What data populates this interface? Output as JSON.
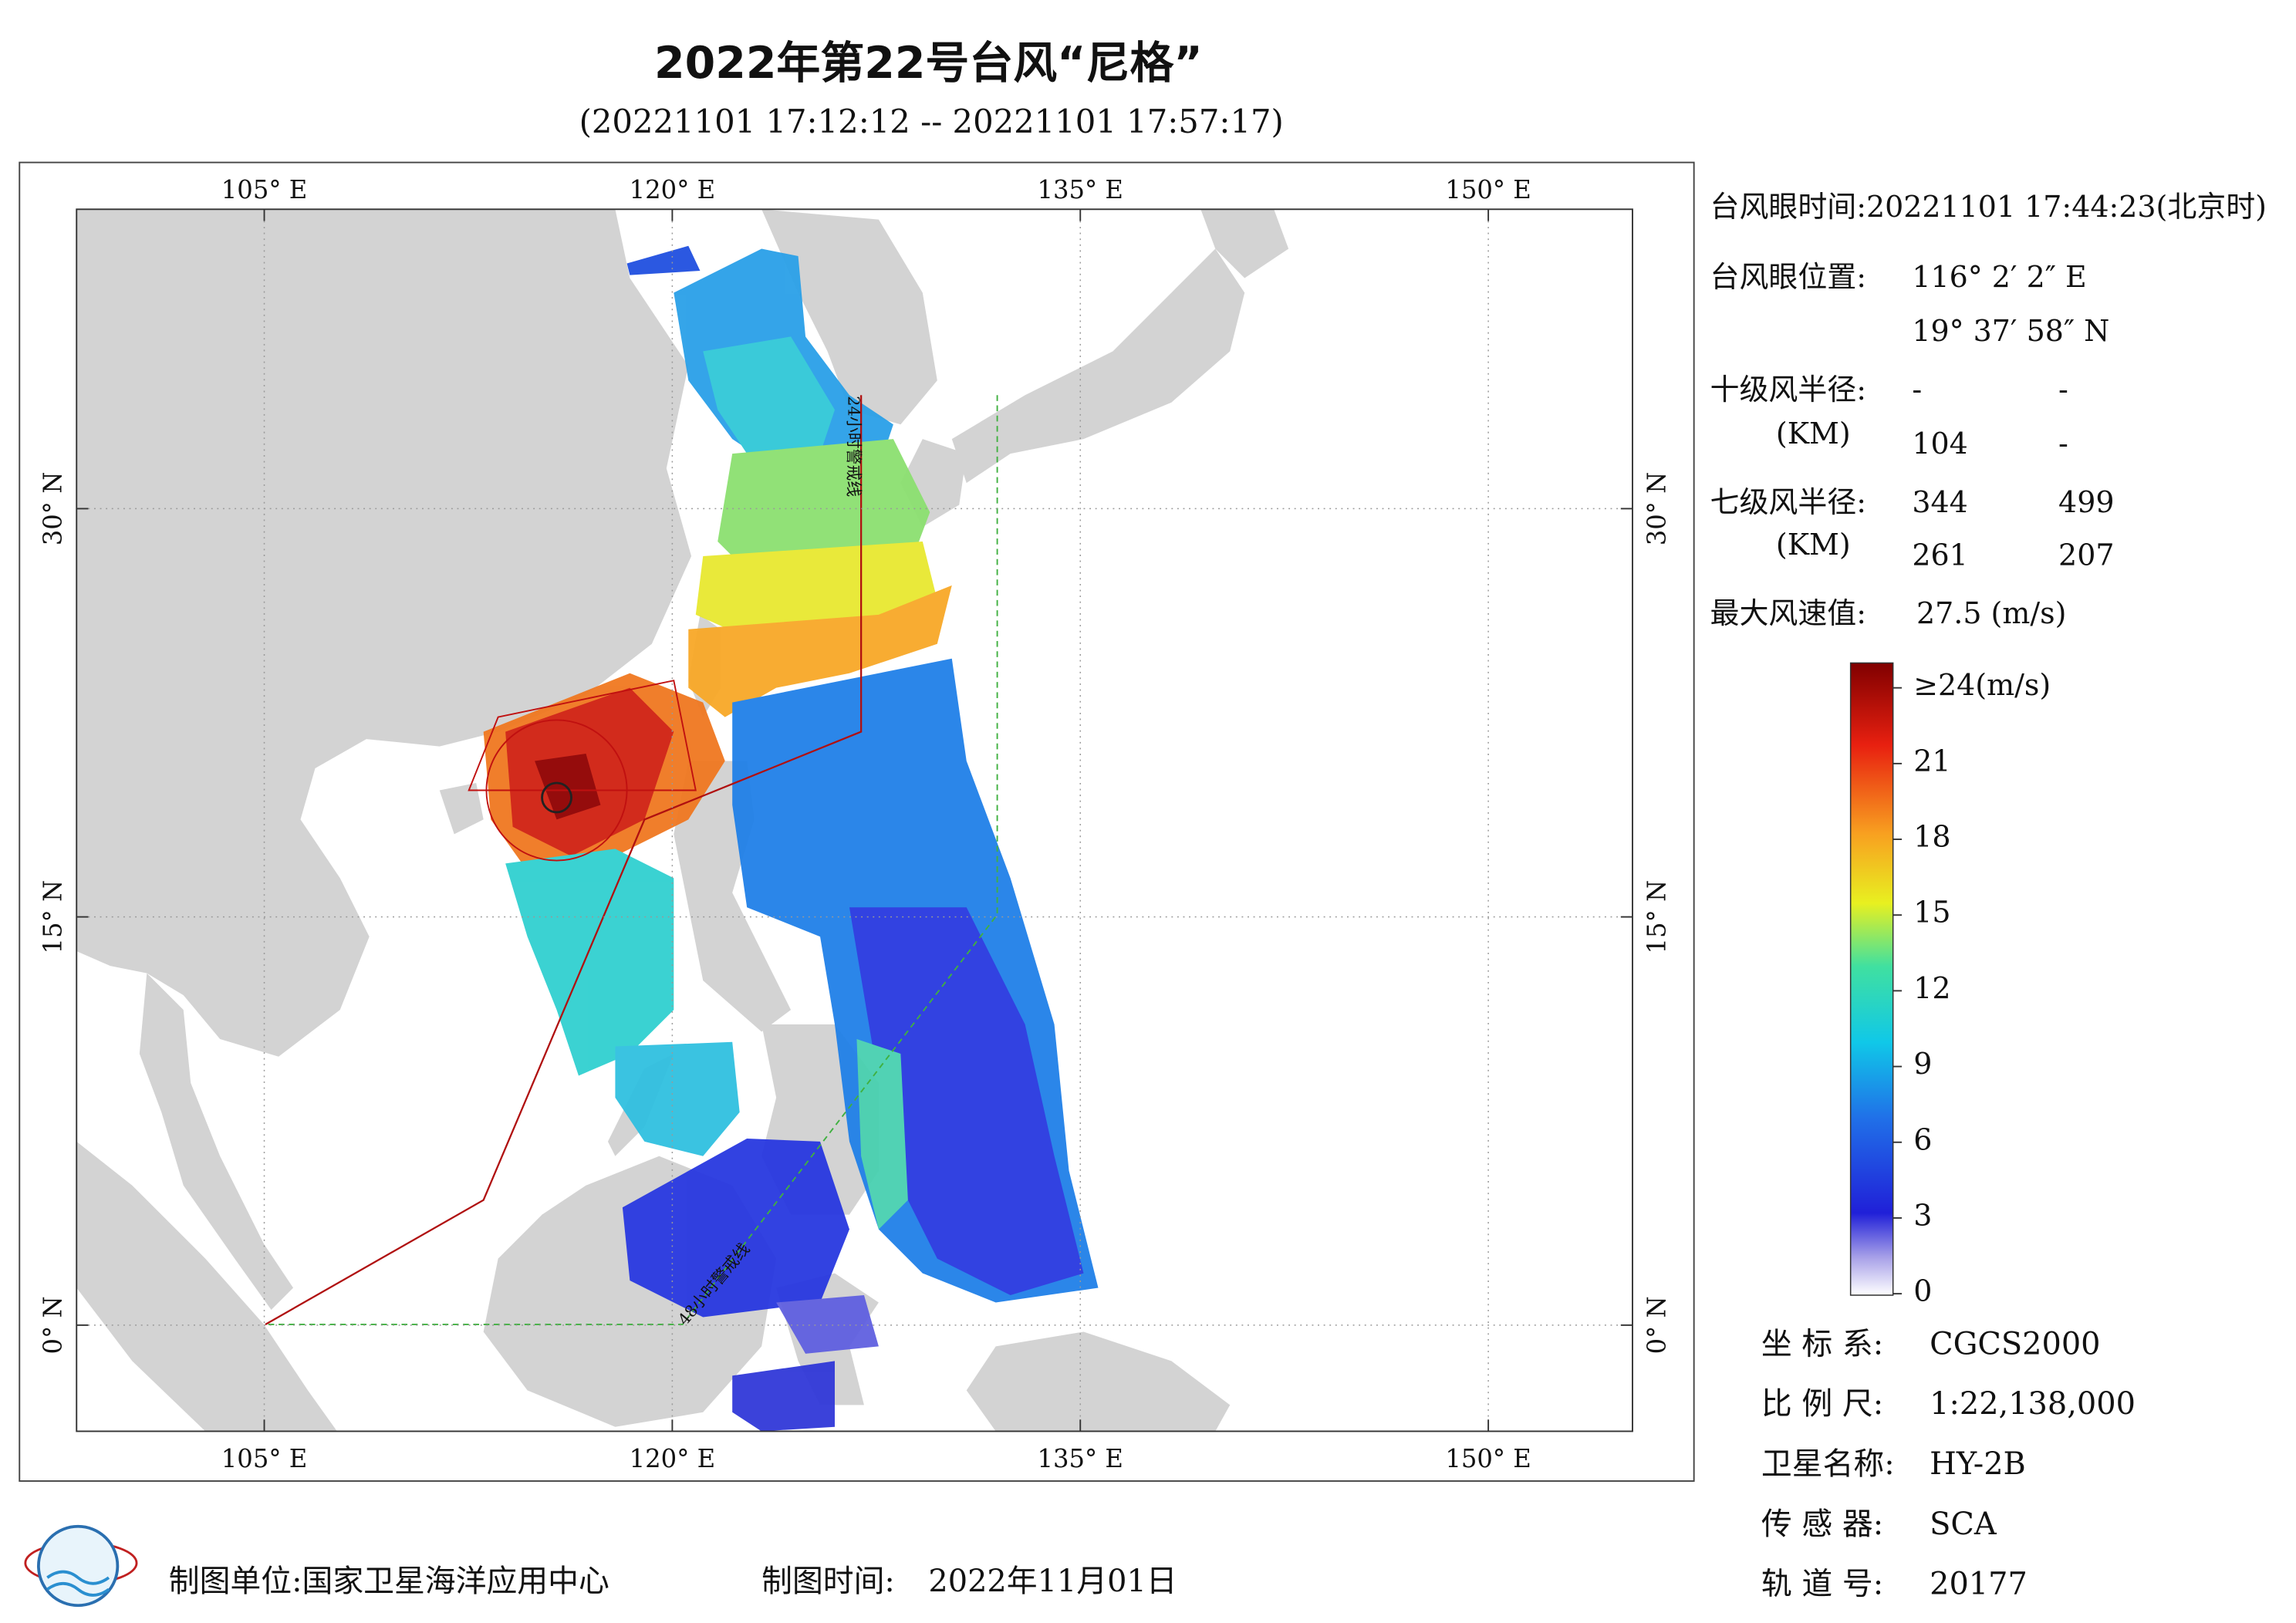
{
  "header": {
    "title": "2022年第22号台风“尼格”",
    "subtitle": "(20221101 17:12:12 -- 20221101 17:57:17)"
  },
  "map": {
    "lon_range": [
      98.1,
      155.3
    ],
    "lat_range": [
      -3.9,
      41.0
    ],
    "lon_ticks": [
      {
        "value": 105,
        "label": "105° E"
      },
      {
        "value": 120,
        "label": "120° E"
      },
      {
        "value": 135,
        "label": "135° E"
      },
      {
        "value": 150,
        "label": "150° E"
      }
    ],
    "lat_ticks": [
      {
        "value": 0,
        "label": "0° N"
      },
      {
        "value": 15,
        "label": "15° N"
      },
      {
        "value": 30,
        "label": "30° N"
      }
    ],
    "line_24h": "24小时警戒线",
    "line_48h": "48小时警戒线"
  },
  "info": {
    "eye_time": "台风眼时间:20221101 17:44:23(北京时)",
    "eye_pos_label": "台风眼位置:",
    "eye_lon": "116° 2′ 2″ E",
    "eye_lat": "19° 37′ 58″ N",
    "r10_label": "十级风半径:",
    "r10_unit": "(KM)",
    "r10_values": [
      "-",
      "-",
      "104",
      "-"
    ],
    "r7_label": "七级风半径:",
    "r7_unit": "(KM)",
    "r7_values": [
      "344",
      "499",
      "261",
      "207"
    ],
    "vmax_label": "最大风速值:",
    "vmax_value": "27.5  (m/s)"
  },
  "legend": {
    "range": [
      0,
      24
    ],
    "ticks": [
      {
        "value": 24,
        "label": "≥24(m/s)"
      },
      21,
      18,
      15,
      12,
      9,
      6,
      3,
      0
    ]
  },
  "meta": [
    [
      "坐 标 系:",
      "CGCS2000"
    ],
    [
      "比 例 尺:",
      "1:22,138,000"
    ],
    [
      "卫星名称:",
      "HY-2B"
    ],
    [
      "传 感 器:",
      "SCA"
    ],
    [
      "轨 道 号:",
      "20177"
    ]
  ],
  "footer": {
    "unit": "制图单位:国家卫星海洋应用中心",
    "time_label": "制图时间:",
    "time_value": "2022年11月01日"
  }
}
